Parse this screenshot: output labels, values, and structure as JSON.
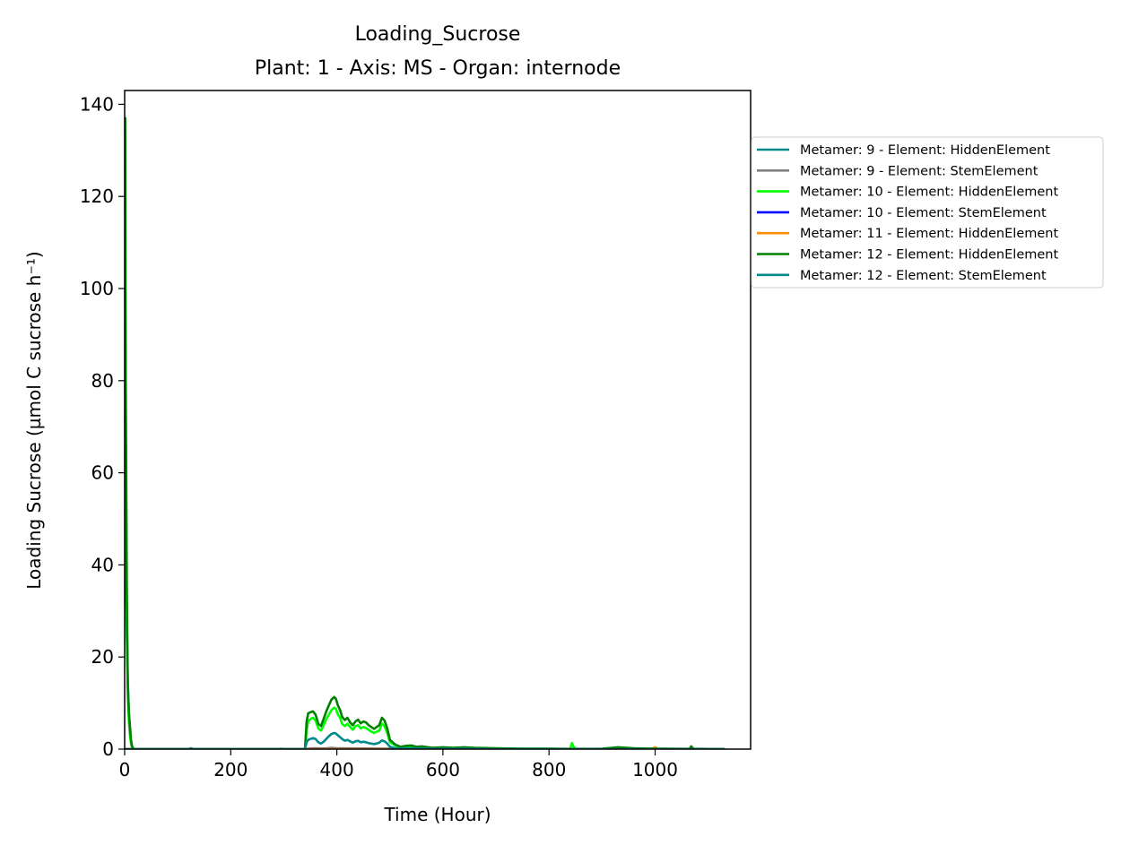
{
  "chart_data": {
    "type": "line",
    "title": "Loading_Sucrose",
    "subtitle": "Plant: 1 - Axis: MS - Organ: internode",
    "xlabel": "Time (Hour)",
    "ylabel": "Loading Sucrose (µmol C sucrose h⁻¹)",
    "xlim": [
      0,
      1180
    ],
    "ylim": [
      0,
      143
    ],
    "xticks": [
      0,
      200,
      400,
      600,
      800,
      1000
    ],
    "yticks": [
      0,
      20,
      40,
      60,
      80,
      100,
      120,
      140
    ],
    "grid": false,
    "legend_position": "right-outside",
    "series": [
      {
        "name": "Metamer: 9 - Element: HiddenElement",
        "color": "#008b8b",
        "x": [
          0,
          2,
          4,
          6,
          8,
          10,
          12,
          14,
          16,
          120,
          125,
          130,
          290,
          295,
          300
        ],
        "y": [
          60,
          40,
          25,
          15,
          8,
          4,
          1.5,
          0.3,
          0,
          0,
          0.2,
          0,
          0,
          0.1,
          0
        ]
      },
      {
        "name": "Metamer: 9 - Element: StemElement",
        "color": "#808080",
        "x": [
          0,
          340,
          345,
          350,
          360,
          370,
          380,
          390,
          400,
          500,
          520,
          1130
        ],
        "y": [
          0,
          0,
          0.1,
          0.15,
          0.2,
          0.15,
          0.2,
          0.3,
          0.2,
          0.1,
          0,
          0
        ]
      },
      {
        "name": "Metamer: 10 - Element: HiddenElement",
        "color": "#00ff00",
        "x": [
          0,
          2,
          4,
          6,
          8,
          10,
          12,
          14,
          16,
          20,
          340,
          343,
          346,
          350,
          355,
          360,
          365,
          370,
          375,
          380,
          385,
          390,
          395,
          398,
          402,
          406,
          410,
          415,
          420,
          425,
          430,
          435,
          440,
          445,
          450,
          455,
          460,
          465,
          470,
          475,
          480,
          485,
          490,
          495,
          500,
          510,
          520,
          530,
          540,
          550,
          560,
          580,
          600,
          620,
          640,
          660,
          700,
          750,
          800,
          840,
          843,
          846,
          850,
          900,
          930,
          1000,
          1070,
          1130
        ],
        "y": [
          120,
          70,
          30,
          12,
          6,
          3,
          1.2,
          0.4,
          0.1,
          0,
          0,
          4,
          6,
          6.5,
          6.8,
          6.2,
          4.5,
          4,
          5.2,
          6.5,
          7.5,
          8.5,
          9,
          8.8,
          7.5,
          6.8,
          5.5,
          5,
          5.5,
          4.8,
          4.2,
          5,
          5.2,
          4.5,
          4.8,
          4.6,
          4.2,
          3.8,
          3.5,
          3.8,
          4,
          5.5,
          5,
          3.5,
          1.5,
          0.8,
          0.3,
          0.5,
          0.6,
          0.4,
          0.5,
          0.2,
          0.3,
          0.2,
          0.3,
          0.2,
          0.1,
          0.1,
          0.1,
          0,
          1.3,
          0.6,
          0,
          0,
          0.2,
          0.1,
          0,
          0
        ]
      },
      {
        "name": "Metamer: 10 - Element: StemElement",
        "color": "#0000ff",
        "x": [
          0,
          500,
          800,
          1130
        ],
        "y": [
          0,
          0,
          0,
          0
        ]
      },
      {
        "name": "Metamer: 11 - Element: HiddenElement",
        "color": "#ff8c00",
        "x": [
          0,
          900,
          930,
          960,
          995,
          1000,
          1005,
          1040,
          1130
        ],
        "y": [
          0,
          0,
          0.2,
          0.1,
          0.1,
          0.4,
          0.1,
          0.05,
          0
        ]
      },
      {
        "name": "Metamer: 12 - Element: HiddenElement",
        "color": "#008000",
        "x": [
          0,
          1,
          2,
          4,
          6,
          8,
          10,
          12,
          14,
          16,
          18,
          340,
          343,
          346,
          350,
          355,
          360,
          365,
          370,
          375,
          380,
          385,
          390,
          395,
          398,
          402,
          406,
          410,
          415,
          420,
          425,
          430,
          435,
          440,
          445,
          450,
          455,
          460,
          465,
          470,
          475,
          480,
          485,
          490,
          495,
          500,
          510,
          520,
          530,
          540,
          550,
          560,
          580,
          600,
          620,
          640,
          660,
          700,
          750,
          800,
          850,
          900,
          930,
          960,
          1000,
          1065,
          1068,
          1072,
          1130
        ],
        "y": [
          100,
          137,
          80,
          35,
          14,
          8,
          5,
          2,
          0.6,
          0.2,
          0,
          0,
          6,
          7.8,
          8,
          8.2,
          7.5,
          5.5,
          5,
          6.5,
          8.2,
          9.5,
          10.8,
          11.3,
          11,
          9.5,
          8.5,
          7,
          6.3,
          6.8,
          5.8,
          5.2,
          6,
          6.4,
          5.6,
          6,
          5.8,
          5.2,
          4.8,
          4.4,
          4.8,
          5.2,
          6.8,
          6.2,
          4.5,
          2,
          1,
          0.5,
          0.7,
          0.8,
          0.5,
          0.6,
          0.3,
          0.4,
          0.3,
          0.4,
          0.3,
          0.2,
          0.1,
          0.1,
          0.05,
          0.1,
          0.4,
          0.2,
          0.1,
          0.05,
          0.6,
          0.1,
          0
        ]
      },
      {
        "name": "Metamer: 12 - Element: StemElement",
        "color": "#008b8b",
        "x": [
          0,
          340,
          343,
          346,
          350,
          355,
          360,
          365,
          370,
          375,
          380,
          385,
          390,
          395,
          398,
          402,
          406,
          410,
          415,
          420,
          425,
          430,
          435,
          440,
          445,
          450,
          455,
          460,
          465,
          470,
          475,
          480,
          485,
          490,
          495,
          500,
          510,
          520,
          540,
          560,
          600,
          650,
          700,
          800,
          1130
        ],
        "y": [
          0,
          0,
          1.5,
          2,
          2.2,
          2.4,
          2.2,
          1.5,
          1.2,
          1.6,
          2.2,
          2.8,
          3.3,
          3.5,
          3.4,
          3,
          2.6,
          2.2,
          1.8,
          2,
          1.7,
          1.4,
          1.7,
          1.8,
          1.5,
          1.6,
          1.5,
          1.3,
          1.2,
          1.1,
          1.2,
          1.4,
          1.9,
          1.7,
          1.2,
          0.5,
          0.2,
          0.1,
          0.15,
          0.1,
          0.05,
          0.05,
          0,
          0,
          0
        ]
      }
    ]
  }
}
